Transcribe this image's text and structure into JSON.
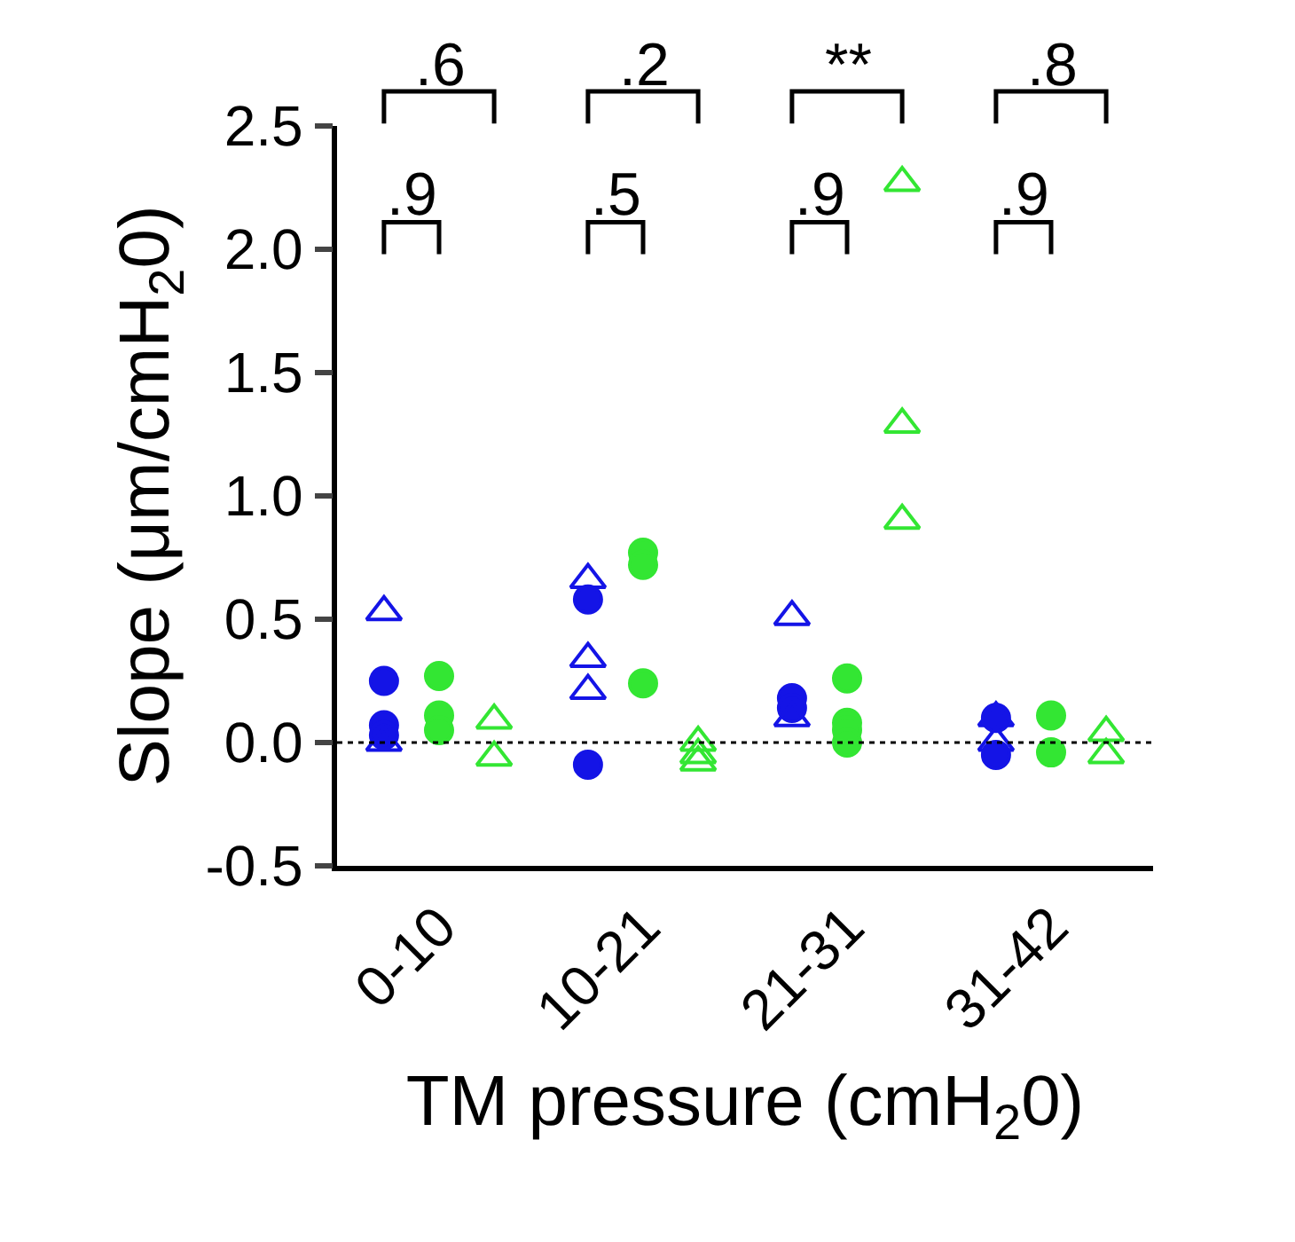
{
  "chart_data": {
    "type": "scatter",
    "xlabel": "TM pressure (cmH$_{2}$0)",
    "ylabel": "Slope (μm/cmH$_{2}$0)",
    "categories": [
      "0-10",
      "10-21",
      "21-31",
      "31-42"
    ],
    "series": [
      {
        "color": "#1414e6",
        "marker": "circle",
        "x": [
          "0-10",
          "0-10",
          "0-10",
          "10-21",
          "10-21",
          "21-31",
          "21-31",
          "31-42",
          "31-42"
        ],
        "values": [
          0.25,
          0.07,
          0.03,
          0.58,
          -0.09,
          0.18,
          0.14,
          0.1,
          -0.05
        ]
      },
      {
        "color": "#1414e6",
        "marker": "triangle",
        "x": [
          "0-10",
          "0-10",
          "10-21",
          "10-21",
          "10-21",
          "21-31",
          "21-31",
          "31-42",
          "31-42"
        ],
        "values": [
          0.53,
          0.0,
          0.66,
          0.34,
          0.21,
          0.51,
          0.1,
          0.1,
          0.0
        ]
      },
      {
        "color": "#33e633",
        "marker": "circle",
        "x": [
          "0-10",
          "0-10",
          "0-10",
          "10-21",
          "10-21",
          "10-21",
          "21-31",
          "21-31",
          "21-31",
          "21-31",
          "31-42",
          "31-42"
        ],
        "values": [
          0.27,
          0.11,
          0.05,
          0.77,
          0.72,
          0.24,
          0.26,
          0.08,
          0.05,
          0.0,
          0.11,
          -0.04
        ]
      },
      {
        "color": "#33e633",
        "marker": "triangle",
        "x": [
          "0-10",
          "0-10",
          "10-21",
          "10-21",
          "10-21",
          "21-31",
          "21-31",
          "21-31",
          "31-42",
          "31-42"
        ],
        "values": [
          0.09,
          -0.06,
          0.0,
          -0.05,
          -0.08,
          2.27,
          1.29,
          0.9,
          0.04,
          -0.05
        ]
      }
    ],
    "ylim": [
      -0.5,
      2.5
    ],
    "yticks": [
      {
        "value": -0.5,
        "label": "-0.5"
      },
      {
        "value": 0,
        "label": "0.0"
      },
      {
        "value": 0.5,
        "label": "0.5"
      },
      {
        "value": 1,
        "label": "1.0"
      },
      {
        "value": 1.5,
        "label": "1.5"
      },
      {
        "value": 2,
        "label": "2.0"
      },
      {
        "value": 2.5,
        "label": "2.5"
      }
    ],
    "grid": false,
    "ref_lines": [
      {
        "axis": "y",
        "value": 0,
        "color": "#000000",
        "line_style": "dotted"
      }
    ],
    "annotations": [
      ".6",
      ".2",
      "**",
      ".8",
      ".9",
      ".5",
      ".9",
      ".9"
    ]
  }
}
